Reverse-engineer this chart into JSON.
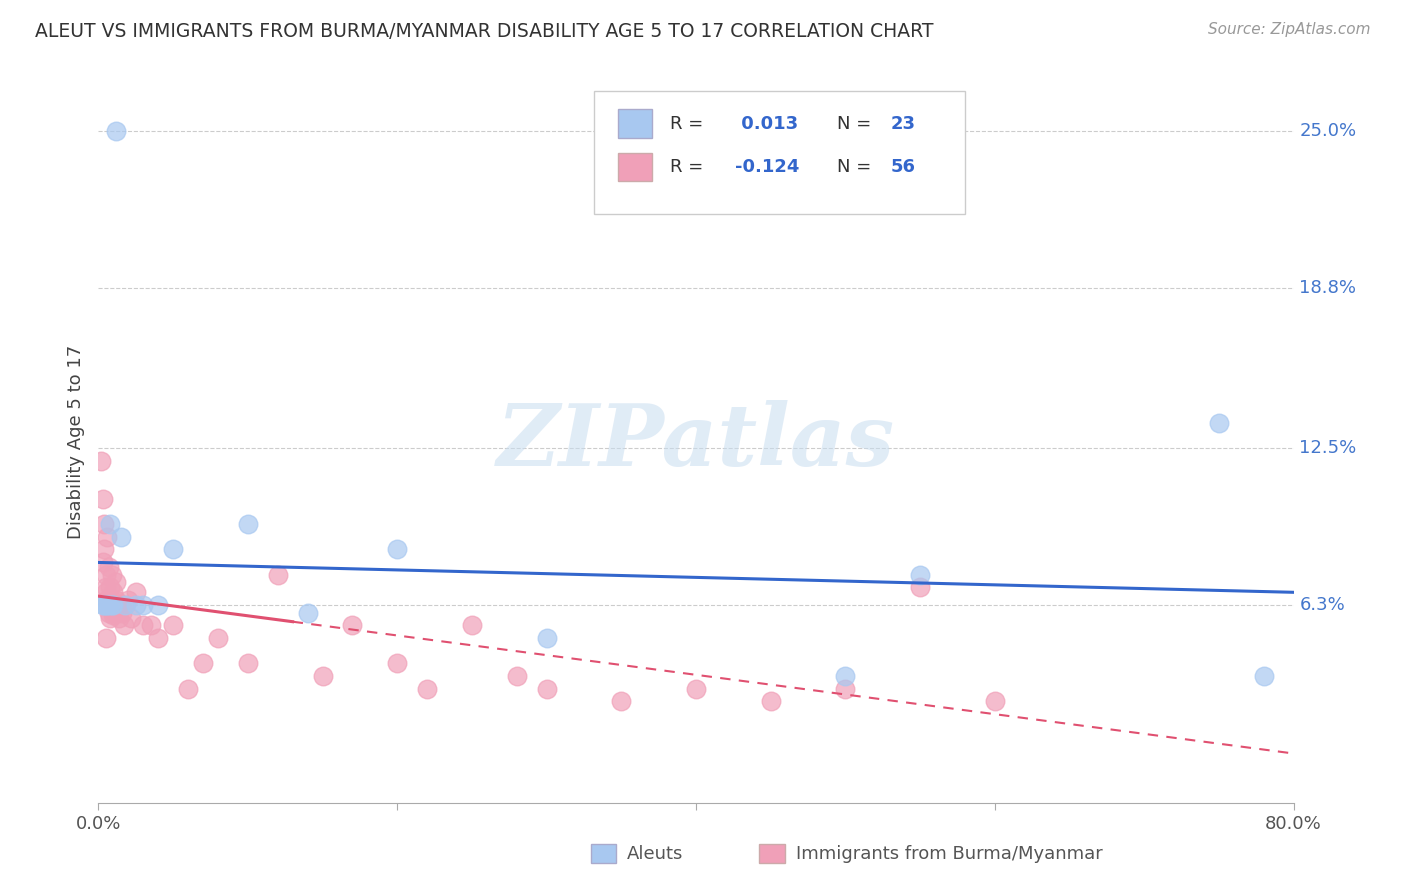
{
  "title": "ALEUT VS IMMIGRANTS FROM BURMA/MYANMAR DISABILITY AGE 5 TO 17 CORRELATION CHART",
  "source": "Source: ZipAtlas.com",
  "ylabel": "Disability Age 5 to 17",
  "watermark": "ZIPatlas",
  "xlim": [
    0.0,
    80.0
  ],
  "ylim": [
    -1.5,
    27.0
  ],
  "ytick_vals": [
    6.3,
    12.5,
    18.8,
    25.0
  ],
  "ytick_labels": [
    "6.3%",
    "12.5%",
    "18.8%",
    "25.0%"
  ],
  "grid_color": "#cccccc",
  "background_color": "#ffffff",
  "blue_color": "#a8c8f0",
  "pink_color": "#f0a0b8",
  "trend_blue": "#3366cc",
  "trend_pink": "#e05070",
  "aleut_x": [
    1.2,
    0.5,
    0.8,
    1.0,
    2.5,
    3.0,
    5.0,
    10.0,
    14.0,
    30.0,
    55.0,
    75.0,
    78.0,
    0.4,
    0.6,
    0.7,
    1.8,
    4.0,
    20.0,
    50.0,
    0.3,
    0.9,
    1.5
  ],
  "aleut_y": [
    25.0,
    6.3,
    9.5,
    6.3,
    6.3,
    6.3,
    8.5,
    9.5,
    6.0,
    5.0,
    7.5,
    13.5,
    3.5,
    6.3,
    6.3,
    6.3,
    6.3,
    6.3,
    8.5,
    3.5,
    6.3,
    6.3,
    9.0
  ],
  "burma_x": [
    0.2,
    0.3,
    0.4,
    0.4,
    0.5,
    0.5,
    0.5,
    0.6,
    0.6,
    0.7,
    0.7,
    0.8,
    0.8,
    0.8,
    0.9,
    0.9,
    1.0,
    1.0,
    1.0,
    1.1,
    1.2,
    1.2,
    1.3,
    1.4,
    1.5,
    1.6,
    1.7,
    1.8,
    2.0,
    2.2,
    2.5,
    3.0,
    3.5,
    4.0,
    5.0,
    6.0,
    7.0,
    8.0,
    10.0,
    12.0,
    15.0,
    17.0,
    20.0,
    22.0,
    25.0,
    28.0,
    30.0,
    35.0,
    40.0,
    45.0,
    50.0,
    55.0,
    60.0,
    0.3,
    0.5,
    0.6
  ],
  "burma_y": [
    12.0,
    10.5,
    9.5,
    8.5,
    7.5,
    7.0,
    6.8,
    6.5,
    9.0,
    6.0,
    7.8,
    6.2,
    7.0,
    5.8,
    6.5,
    7.5,
    6.3,
    5.9,
    6.8,
    6.0,
    6.5,
    7.2,
    6.3,
    5.8,
    6.3,
    6.0,
    5.5,
    6.3,
    6.5,
    5.8,
    6.8,
    5.5,
    5.5,
    5.0,
    5.5,
    3.0,
    4.0,
    5.0,
    4.0,
    7.5,
    3.5,
    5.5,
    4.0,
    3.0,
    5.5,
    3.5,
    3.0,
    2.5,
    3.0,
    2.5,
    3.0,
    7.0,
    2.5,
    8.0,
    5.0,
    6.5
  ],
  "legend_r1_prefix": "R = ",
  "legend_r1_val": " 0.013",
  "legend_n1_prefix": "N = ",
  "legend_n1_val": "23",
  "legend_r2_prefix": "R = ",
  "legend_r2_val": "-0.124",
  "legend_n2_prefix": "N = ",
  "legend_n2_val": "56",
  "bottom_legend_label1": "Aleuts",
  "bottom_legend_label2": "Immigrants from Burma/Myanmar"
}
